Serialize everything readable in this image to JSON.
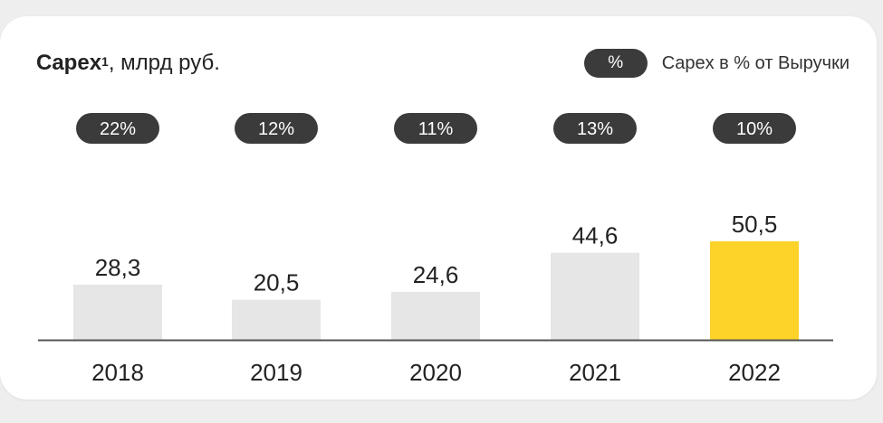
{
  "header": {
    "title_bold": "Capex",
    "title_sup": "1",
    "title_rest": ", млрд руб."
  },
  "legend": {
    "pill": "%",
    "label": "Capex в % от Выручки"
  },
  "colors": {
    "bar_default": "#e6e6e6",
    "bar_highlight": "#fdd32a",
    "pill": "#3b3b3b",
    "axis": "#555555"
  },
  "chart_data": {
    "type": "bar",
    "categories": [
      "2018",
      "2019",
      "2020",
      "2021",
      "2022"
    ],
    "values": [
      28.3,
      20.5,
      24.6,
      44.6,
      50.5
    ],
    "value_labels": [
      "28,3",
      "20,5",
      "24,6",
      "44,6",
      "50,5"
    ],
    "percent_labels": [
      "22%",
      "12%",
      "11%",
      "13%",
      "10%"
    ],
    "highlight_index": 4,
    "grid": false
  }
}
